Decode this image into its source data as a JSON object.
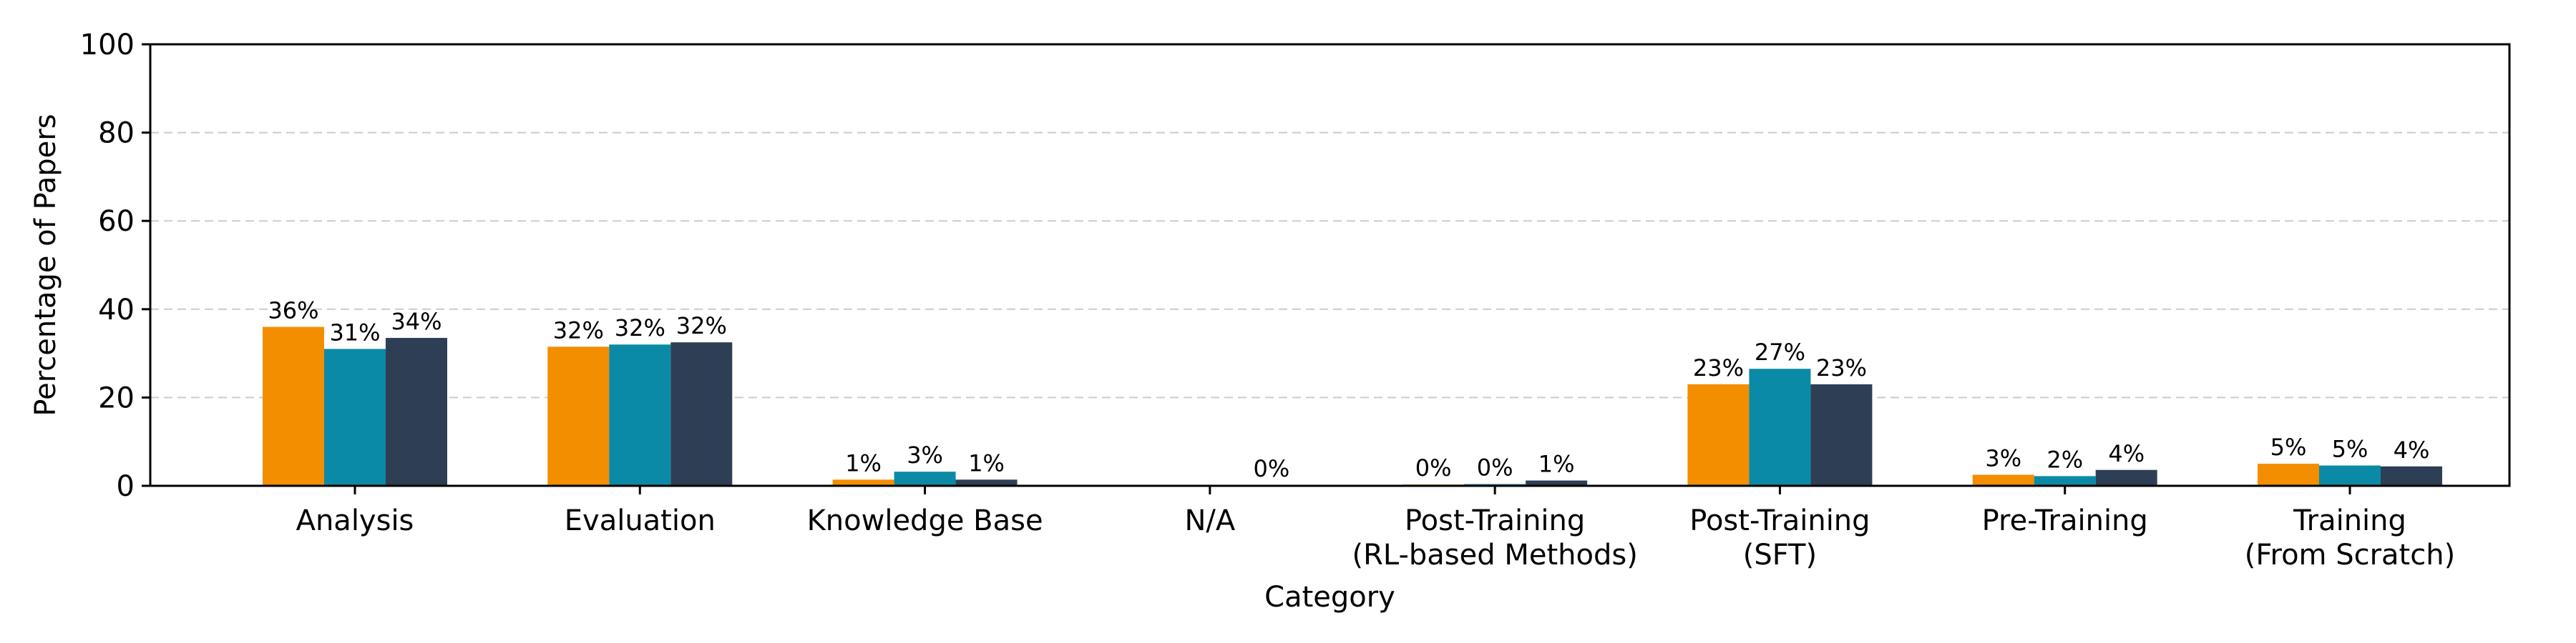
{
  "chart_data": {
    "type": "bar",
    "xlabel": "Category",
    "ylabel": "Percentage of Papers",
    "ylim": [
      0,
      100
    ],
    "yticks": [
      "0",
      "20",
      "40",
      "60",
      "80",
      "100"
    ],
    "grid": "y-dashed",
    "categories": [
      [
        "Analysis"
      ],
      [
        "Evaluation"
      ],
      [
        "Knowledge Base"
      ],
      [
        "N/A"
      ],
      [
        "Post-Training",
        "(RL-based Methods)"
      ],
      [
        "Post-Training",
        "(SFT)"
      ],
      [
        "Pre-Training"
      ],
      [
        "Training",
        "(From Scratch)"
      ]
    ],
    "series": [
      {
        "color": "#f28e00",
        "values": [
          36,
          31.5,
          1.4,
          null,
          0.3,
          23,
          2.5,
          5
        ],
        "labels": [
          "36%",
          "32%",
          "1%",
          "",
          "0%",
          "23%",
          "3%",
          "5%"
        ]
      },
      {
        "color": "#0a8aa6",
        "values": [
          31,
          32,
          3.2,
          null,
          0.4,
          26.5,
          2.2,
          4.6
        ],
        "labels": [
          "31%",
          "32%",
          "3%",
          "",
          "0%",
          "27%",
          "2%",
          "5%"
        ]
      },
      {
        "color": "#2e3f55",
        "values": [
          33.5,
          32.5,
          1.4,
          0.2,
          1.2,
          23,
          3.6,
          4.4
        ],
        "labels": [
          "34%",
          "32%",
          "1%",
          "0%",
          "1%",
          "23%",
          "4%",
          "4%"
        ]
      }
    ]
  }
}
